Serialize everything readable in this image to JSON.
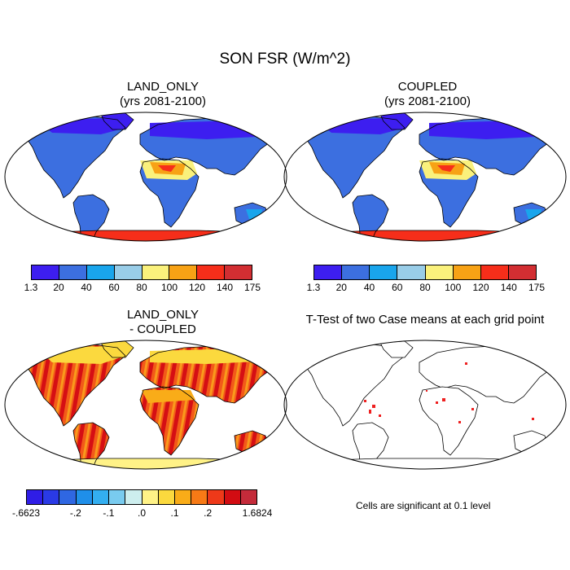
{
  "main_title": "SON FSR (W/m^2)",
  "panels": [
    {
      "title_line1": "LAND_ONLY",
      "title_line2": "(yrs 2081-2100)"
    },
    {
      "title_line1": "COUPLED",
      "title_line2": "(yrs 2081-2100)"
    },
    {
      "title_line1": "LAND_ONLY",
      "title_line2": "- COUPLED"
    },
    {
      "title_line1": "T-Test of two Case means at each grid point"
    }
  ],
  "colorbar_fsr": {
    "colors": [
      "#3d1ef0",
      "#3c6fe0",
      "#19a5ec",
      "#99cde8",
      "#faf17c",
      "#f7a215",
      "#f62e1a",
      "#d22e32"
    ],
    "labels": [
      "1.3",
      "20",
      "40",
      "60",
      "80",
      "100",
      "120",
      "140",
      "175"
    ]
  },
  "colorbar_diff": {
    "colors": [
      "#2f1de6",
      "#2a3ae6",
      "#2f67e2",
      "#1f8fe9",
      "#33aef0",
      "#79cbef",
      "#cdeeee",
      "#fff287",
      "#fbd93e",
      "#f9ac18",
      "#f77a16",
      "#ee3919",
      "#d20c12",
      "#c42b3a"
    ],
    "labels": [
      "-.6623",
      "-.2",
      "-.1",
      ".0",
      ".1",
      ".2",
      "1.6824"
    ]
  },
  "ttest_note": "Cells are significant at 0.1 level"
}
